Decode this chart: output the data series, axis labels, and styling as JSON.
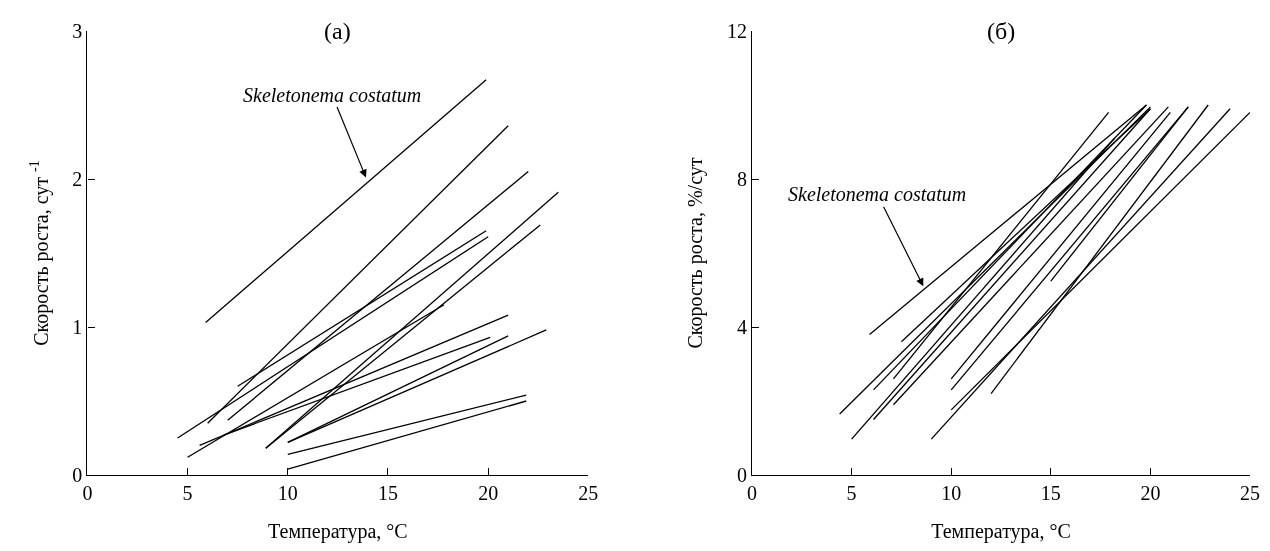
{
  "chart_data": [
    {
      "type": "line",
      "title": "(а)",
      "xlabel": "Температура, °C",
      "ylabel": "Скорость роста, сут $^{-1}$",
      "xlim": [
        0,
        25
      ],
      "ylim": [
        0,
        3
      ],
      "xticks": [
        0,
        5,
        10,
        15,
        20,
        25
      ],
      "yticks": [
        0,
        1,
        2,
        3
      ],
      "marker": "none",
      "line_style": "solid",
      "annotations": [
        {
          "text": "Skeletonema costatum",
          "x": 13.9,
          "y": 2.01
        }
      ],
      "series": [
        {
          "color": "#000000",
          "x": [
            5.9,
            19.9
          ],
          "values": [
            1.03,
            2.67
          ]
        },
        {
          "color": "#000000",
          "x": [
            6.0,
            21.0
          ],
          "values": [
            0.35,
            2.36
          ]
        },
        {
          "color": "#000000",
          "x": [
            7.0,
            22.0
          ],
          "values": [
            0.37,
            2.05
          ]
        },
        {
          "color": "#000000",
          "x": [
            7.5,
            19.9
          ],
          "values": [
            0.6,
            1.65
          ]
        },
        {
          "color": "#000000",
          "x": [
            4.5,
            20.0
          ],
          "values": [
            0.25,
            1.61
          ]
        },
        {
          "color": "#000000",
          "x": [
            5.0,
            17.8
          ],
          "values": [
            0.12,
            1.15
          ]
        },
        {
          "color": "#000000",
          "x": [
            8.9,
            23.5
          ],
          "values": [
            0.18,
            1.91
          ]
        },
        {
          "color": "#000000",
          "x": [
            8.9,
            22.6
          ],
          "values": [
            0.18,
            1.69
          ]
        },
        {
          "color": "#000000",
          "x": [
            5.6,
            21.0
          ],
          "values": [
            0.2,
            1.08
          ]
        },
        {
          "color": "#000000",
          "x": [
            6.8,
            20.1
          ],
          "values": [
            0.27,
            0.93
          ]
        },
        {
          "color": "#000000",
          "x": [
            10.0,
            21.0
          ],
          "values": [
            0.22,
            0.94
          ]
        },
        {
          "color": "#000000",
          "x": [
            10.0,
            22.9
          ],
          "values": [
            0.22,
            0.98
          ]
        },
        {
          "color": "#000000",
          "x": [
            10.0,
            21.9
          ],
          "values": [
            0.14,
            0.54
          ]
        },
        {
          "color": "#000000",
          "x": [
            10.0,
            21.9
          ],
          "values": [
            0.04,
            0.5
          ]
        }
      ]
    },
    {
      "type": "line",
      "title": "(б)",
      "xlabel": "Температура, °C",
      "ylabel": "Скорость роста, %/сут",
      "xlim": [
        0,
        25
      ],
      "ylim": [
        0,
        12
      ],
      "xticks": [
        0,
        5,
        10,
        15,
        20,
        25
      ],
      "yticks": [
        0,
        4,
        8,
        12
      ],
      "marker": "none",
      "line_style": "solid",
      "annotations": [
        {
          "text": "Skeletonema costatum",
          "x": 8.6,
          "y": 5.1
        }
      ],
      "series": [
        {
          "color": "#000000",
          "x": [
            5.9,
            19.8
          ],
          "values": [
            3.8,
            10.0
          ]
        },
        {
          "color": "#000000",
          "x": [
            7.5,
            20.0
          ],
          "values": [
            3.6,
            9.9
          ]
        },
        {
          "color": "#000000",
          "x": [
            6.1,
            19.8
          ],
          "values": [
            2.3,
            10.0
          ]
        },
        {
          "color": "#000000",
          "x": [
            4.4,
            20.0
          ],
          "values": [
            1.65,
            9.95
          ]
        },
        {
          "color": "#000000",
          "x": [
            7.1,
            17.9
          ],
          "values": [
            2.6,
            9.8
          ]
        },
        {
          "color": "#000000",
          "x": [
            6.1,
            20.0
          ],
          "values": [
            1.5,
            9.9
          ]
        },
        {
          "color": "#000000",
          "x": [
            5.0,
            18.2
          ],
          "values": [
            0.97,
            9.1
          ]
        },
        {
          "color": "#000000",
          "x": [
            7.1,
            20.9
          ],
          "values": [
            1.9,
            9.95
          ]
        },
        {
          "color": "#000000",
          "x": [
            10.0,
            21.0
          ],
          "values": [
            2.6,
            9.8
          ]
        },
        {
          "color": "#000000",
          "x": [
            10.0,
            21.9
          ],
          "values": [
            2.3,
            9.95
          ]
        },
        {
          "color": "#000000",
          "x": [
            15.0,
            21.9
          ],
          "values": [
            5.24,
            9.95
          ]
        },
        {
          "color": "#000000",
          "x": [
            10.0,
            25.0
          ],
          "values": [
            1.76,
            9.8
          ]
        },
        {
          "color": "#000000",
          "x": [
            9.0,
            24.0
          ],
          "values": [
            0.97,
            9.9
          ]
        },
        {
          "color": "#000000",
          "x": [
            12.0,
            22.9
          ],
          "values": [
            2.2,
            10.0
          ]
        }
      ]
    }
  ]
}
